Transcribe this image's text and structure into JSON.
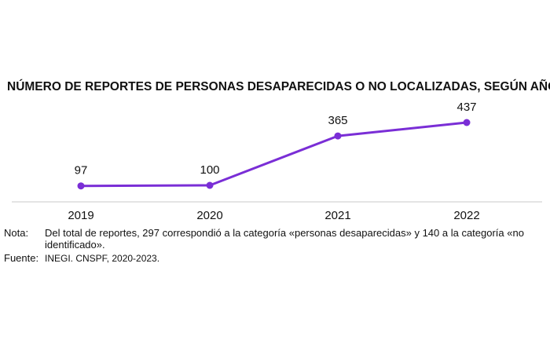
{
  "chart_data": {
    "type": "line",
    "title": "NÚMERO DE REPORTES DE PERSONAS DESAPARECIDAS O NO LOCALIZADAS, SEGÚN AÑO",
    "categories": [
      "2019",
      "2020",
      "2021",
      "2022"
    ],
    "series": [
      {
        "values": [
          97,
          100,
          365,
          437
        ],
        "labels": [
          "97",
          "100",
          "365",
          "437"
        ]
      }
    ],
    "ylim": [
      0,
      450
    ],
    "grid": false,
    "color": "#7a2ed6"
  },
  "footnotes": {
    "note_label": "Nota:",
    "note_text": "Del total de reportes, 297 correspondió a la categoría «personas desaparecidas» y 140 a la categoría «no identificado».",
    "source_label": "Fuente:",
    "source_text": "INEGI. CNSPF, 2020-2023."
  }
}
